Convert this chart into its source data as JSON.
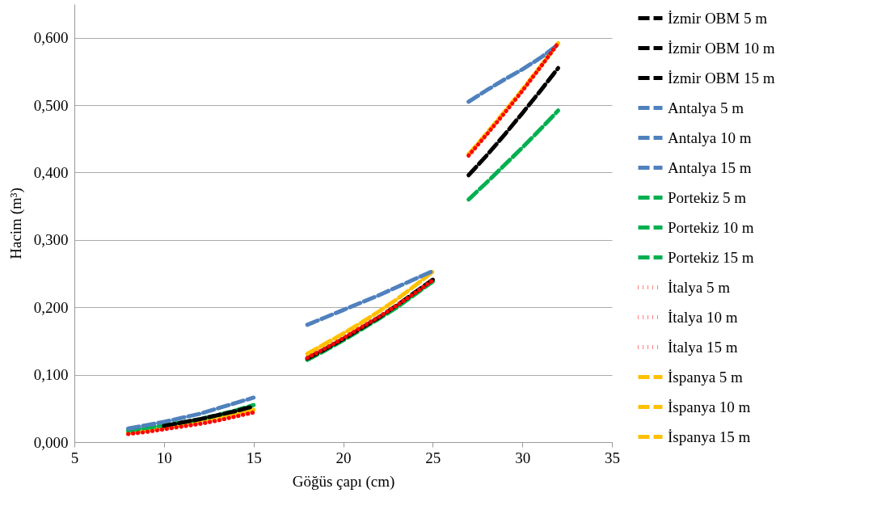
{
  "chart_data": {
    "type": "line",
    "xlabel": "Göğüs çapı (cm)",
    "ylabel": "Hacim (m³)",
    "xlim": [
      5,
      35
    ],
    "xticks": [
      5,
      10,
      15,
      20,
      25,
      30,
      35
    ],
    "ylim": [
      0,
      0.65
    ],
    "yticks": [
      {
        "value": 0,
        "label": "0,000"
      },
      {
        "value": 0.1,
        "label": "0,100"
      },
      {
        "value": 0.2,
        "label": "0,200"
      },
      {
        "value": 0.3,
        "label": "0,300"
      },
      {
        "value": 0.4,
        "label": "0,400"
      },
      {
        "value": 0.5,
        "label": "0,500"
      },
      {
        "value": 0.6,
        "label": "0,600"
      }
    ],
    "grid": "y",
    "legend": "right",
    "marker": "none",
    "series": [
      {
        "name": "İzmir OBM 5 m",
        "color": "#000000",
        "line_style": "dashed",
        "x": [
          10,
          11,
          12,
          13,
          14,
          15
        ],
        "values": [
          0.024,
          0.029,
          0.034,
          0.04,
          0.046,
          0.053
        ]
      },
      {
        "name": "İzmir OBM 10 m",
        "color": "#000000",
        "line_style": "dashed",
        "x": [
          18,
          19,
          20,
          21,
          22,
          23,
          24,
          25
        ],
        "values": [
          0.124,
          0.138,
          0.153,
          0.169,
          0.185,
          0.203,
          0.222,
          0.241
        ]
      },
      {
        "name": "İzmir OBM 15 m",
        "color": "#000000",
        "line_style": "dashed",
        "x": [
          27,
          28,
          29,
          30,
          31,
          32
        ],
        "values": [
          0.396,
          0.425,
          0.456,
          0.488,
          0.521,
          0.555
        ]
      },
      {
        "name": "Antalya 5 m",
        "color": "#4f81bd",
        "line_style": "dashed",
        "x": [
          8,
          9,
          10,
          11,
          12,
          13,
          14,
          15
        ],
        "values": [
          0.02,
          0.025,
          0.03,
          0.036,
          0.042,
          0.05,
          0.058,
          0.066
        ]
      },
      {
        "name": "Antalya 10 m",
        "color": "#4f81bd",
        "line_style": "dashed",
        "x": [
          18,
          19,
          20,
          21,
          22,
          23,
          24,
          25
        ],
        "values": [
          0.174,
          0.185,
          0.196,
          0.207,
          0.218,
          0.23,
          0.242,
          0.254
        ]
      },
      {
        "name": "Antalya 15 m",
        "color": "#4f81bd",
        "line_style": "dashed",
        "x": [
          27,
          28,
          29,
          30,
          31,
          32
        ],
        "values": [
          0.505,
          0.522,
          0.538,
          0.553,
          0.57,
          0.59
        ]
      },
      {
        "name": "Portekiz 5 m",
        "color": "#00b050",
        "line_style": "dashed",
        "x": [
          8,
          9,
          10,
          11,
          12,
          13,
          14,
          15
        ],
        "values": [
          0.017,
          0.021,
          0.025,
          0.029,
          0.034,
          0.04,
          0.047,
          0.055
        ]
      },
      {
        "name": "Portekiz 10 m",
        "color": "#00b050",
        "line_style": "dashed",
        "x": [
          18,
          19,
          20,
          21,
          22,
          23,
          24,
          25
        ],
        "values": [
          0.122,
          0.136,
          0.151,
          0.167,
          0.183,
          0.2,
          0.219,
          0.238
        ]
      },
      {
        "name": "Portekiz 15 m",
        "color": "#00b050",
        "line_style": "dashed",
        "x": [
          27,
          28,
          29,
          30,
          31,
          32
        ],
        "values": [
          0.36,
          0.385,
          0.411,
          0.437,
          0.464,
          0.492
        ]
      },
      {
        "name": "İtalya 5 m",
        "color": "#ff0000",
        "line_style": "dotted",
        "x": [
          8,
          9,
          10,
          11,
          12,
          13,
          14,
          15
        ],
        "values": [
          0.012,
          0.015,
          0.019,
          0.023,
          0.027,
          0.032,
          0.038,
          0.044
        ]
      },
      {
        "name": "İtalya 10 m",
        "color": "#ff0000",
        "line_style": "dotted",
        "x": [
          18,
          19,
          20,
          21,
          22,
          23,
          24,
          25
        ],
        "values": [
          0.125,
          0.139,
          0.154,
          0.17,
          0.186,
          0.203,
          0.221,
          0.24
        ]
      },
      {
        "name": "İtalya 15 m",
        "color": "#ff0000",
        "line_style": "dotted",
        "x": [
          27,
          28,
          29,
          30,
          31,
          32
        ],
        "values": [
          0.425,
          0.456,
          0.488,
          0.521,
          0.556,
          0.592
        ]
      },
      {
        "name": "İspanya 5 m",
        "color": "#ffc000",
        "line_style": "dashed",
        "x": [
          8,
          9,
          10,
          11,
          12,
          13,
          14,
          15
        ],
        "values": [
          0.014,
          0.018,
          0.022,
          0.026,
          0.031,
          0.036,
          0.042,
          0.048
        ]
      },
      {
        "name": "İspanya 10 m",
        "color": "#ffc000",
        "line_style": "dashed",
        "x": [
          18,
          19,
          20,
          21,
          22,
          23,
          24,
          25
        ],
        "values": [
          0.131,
          0.146,
          0.161,
          0.177,
          0.194,
          0.212,
          0.232,
          0.253
        ]
      },
      {
        "name": "İspanya 15 m",
        "color": "#ffc000",
        "line_style": "dashed",
        "x": [
          27,
          28,
          29,
          30,
          31,
          32
        ],
        "values": [
          0.427,
          0.458,
          0.49,
          0.523,
          0.557,
          0.592
        ]
      }
    ]
  }
}
